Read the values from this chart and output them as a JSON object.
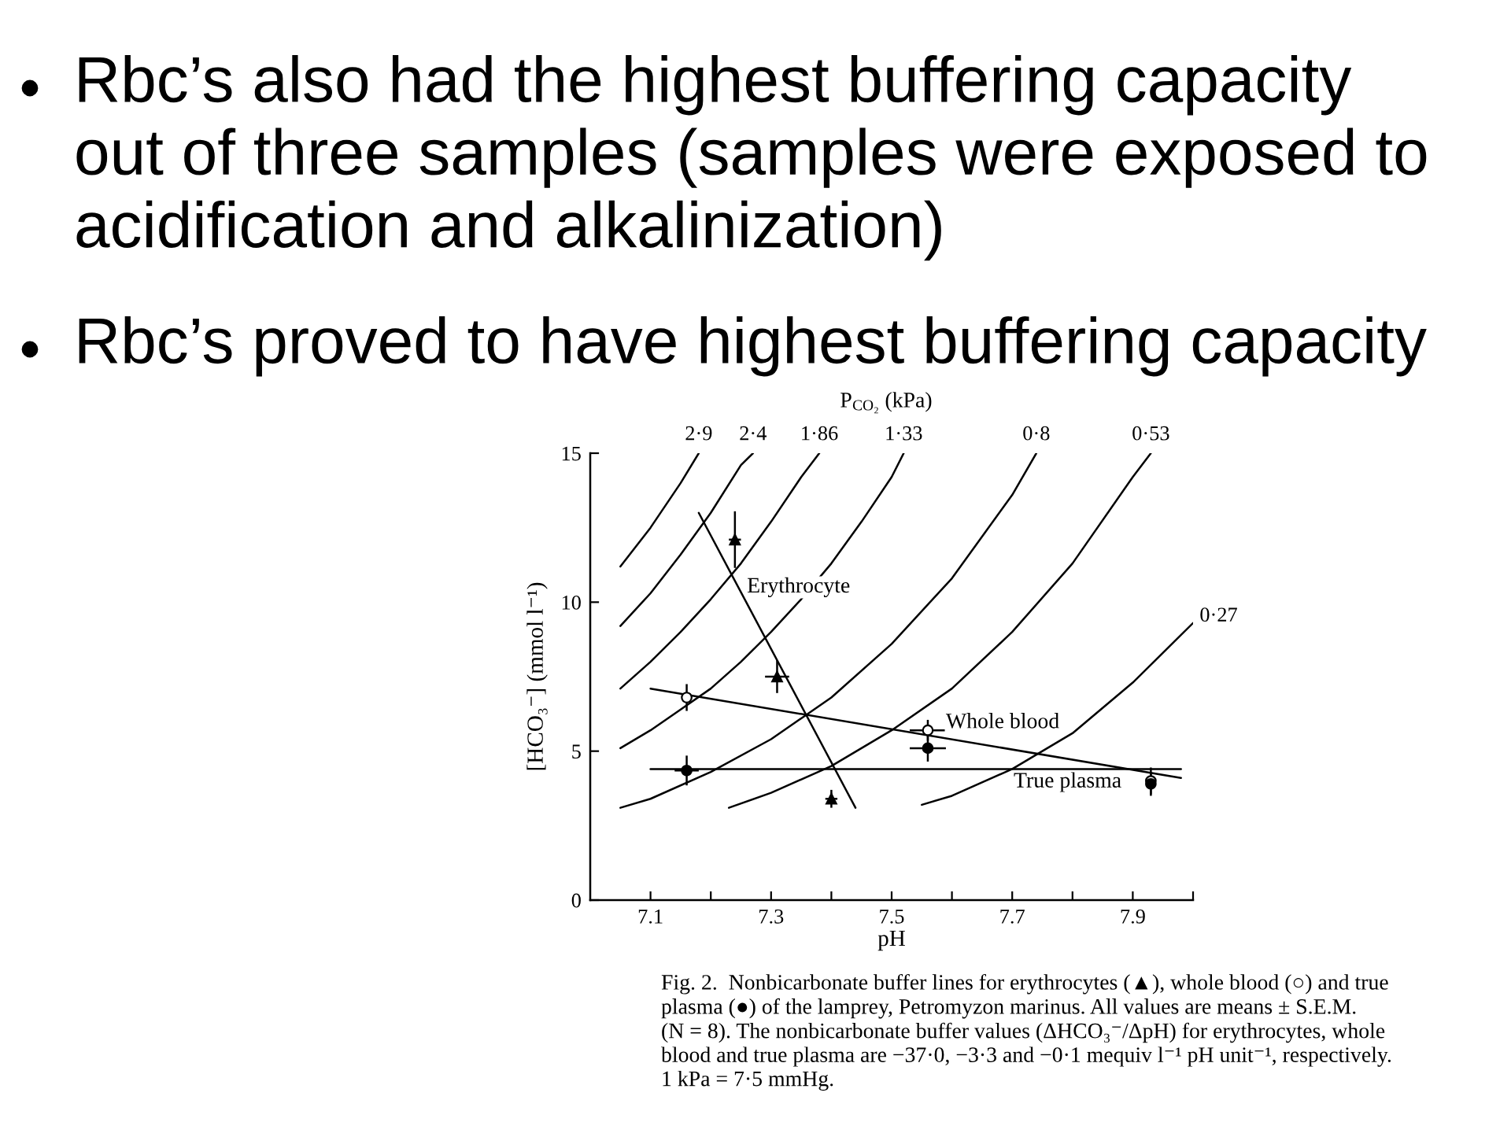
{
  "chart_data": {
    "type": "line",
    "xlabel": "pH",
    "ylabel": "[HCO₃⁻] (mmol l⁻¹)",
    "xlim": [
      7.0,
      8.0
    ],
    "ylim": [
      0,
      15
    ],
    "xticks": [
      7.1,
      {
        "value": 7.2,
        "label": null
      },
      7.3,
      {
        "value": 7.4,
        "label": null
      },
      7.5,
      {
        "value": 7.6,
        "label": null
      },
      7.7,
      {
        "value": 7.8,
        "label": null
      },
      7.9,
      {
        "value": 8.0,
        "label": null
      }
    ],
    "yticks": [
      0,
      5,
      10,
      15
    ],
    "series": [
      {
        "name": "2·9",
        "color": "#000000",
        "x": [
          7.05,
          7.1,
          7.15,
          7.18
        ],
        "values": [
          11.2,
          12.5,
          14.0,
          15.0
        ]
      },
      {
        "name": "2·4",
        "color": "#000000",
        "x": [
          7.05,
          7.1,
          7.15,
          7.2,
          7.25,
          7.27
        ],
        "values": [
          9.2,
          10.3,
          11.6,
          13.0,
          14.6,
          15.0
        ]
      },
      {
        "name": "1·86",
        "color": "#000000",
        "x": [
          7.05,
          7.1,
          7.15,
          7.2,
          7.25,
          7.3,
          7.35,
          7.38
        ],
        "values": [
          7.1,
          8.0,
          9.0,
          10.1,
          11.3,
          12.7,
          14.2,
          15.0
        ]
      },
      {
        "name": "1·33",
        "color": "#000000",
        "x": [
          7.05,
          7.1,
          7.15,
          7.2,
          7.25,
          7.3,
          7.35,
          7.4,
          7.45,
          7.5,
          7.52
        ],
        "values": [
          5.1,
          5.7,
          6.4,
          7.1,
          8.0,
          9.0,
          10.1,
          11.3,
          12.7,
          14.2,
          15.0
        ]
      },
      {
        "name": "0·8",
        "color": "#000000",
        "x": [
          7.05,
          7.1,
          7.2,
          7.3,
          7.4,
          7.5,
          7.6,
          7.7,
          7.74
        ],
        "values": [
          3.1,
          3.4,
          4.3,
          5.4,
          6.8,
          8.6,
          10.8,
          13.6,
          15.0
        ]
      },
      {
        "name": "0·53",
        "color": "#000000",
        "x": [
          7.23,
          7.3,
          7.4,
          7.5,
          7.6,
          7.7,
          7.8,
          7.9,
          7.93
        ],
        "values": [
          3.1,
          3.6,
          4.5,
          5.7,
          7.1,
          9.0,
          11.3,
          14.2,
          15.0
        ]
      },
      {
        "name": "0·27",
        "color": "#000000",
        "x": [
          7.55,
          7.6,
          7.7,
          7.8,
          7.9,
          8.0
        ],
        "values": [
          3.2,
          3.5,
          4.4,
          5.6,
          7.3,
          9.3
        ]
      },
      {
        "color": "#000000",
        "x": [
          7.18,
          7.44
        ],
        "values": [
          13.0,
          3.1
        ]
      },
      {
        "color": "#000000",
        "x": [
          7.1,
          7.98
        ],
        "values": [
          7.1,
          4.1
        ]
      },
      {
        "color": "#000000",
        "x": [
          7.1,
          7.98
        ],
        "values": [
          4.4,
          4.4
        ]
      },
      {
        "type": "scatter",
        "marker": "triangle",
        "color": "#000000",
        "x": [
          7.24,
          7.31,
          7.4
        ],
        "values": [
          12.1,
          7.5,
          3.4
        ],
        "errors": [
          0.95,
          0.55,
          0.3
        ],
        "xerrors": [
          0.01,
          0.02,
          0.01
        ]
      },
      {
        "type": "scatter",
        "marker": "circle",
        "color": "#ffffff",
        "x": [
          7.16,
          7.56,
          7.93
        ],
        "values": [
          6.8,
          5.7,
          4.0
        ],
        "errors": [
          0.45,
          0.35,
          0.45
        ],
        "xerrors": [
          null,
          0.03,
          null
        ]
      },
      {
        "type": "scatter",
        "marker": "circle",
        "color": "#000000",
        "x": [
          7.16,
          7.56,
          7.93
        ],
        "values": [
          4.35,
          5.1,
          3.9
        ],
        "errors": [
          0.5,
          0.45,
          0.4
        ],
        "xerrors": [
          0.02,
          0.03,
          null
        ]
      }
    ],
    "annotations": [
      "Rbc’s also had the highest buffering capacity\nout of three samples (samples were exposed to\nacidification and alkalinization)",
      "Rbc’s proved to have highest buffering capacity",
      "P$_{CO₂}$ (kPa)",
      "Fig. 2.  Nonbicarbonate buffer lines for erythrocytes (▲), whole blood (○) and true\nplasma (●) of the lamprey, Petromyzon marinus. All values are means ± S.E.M.\n(N = 8). The nonbicarbonate buffer values (ΔHCO₃⁻/ΔpH) for erythrocytes, whole\nblood and true plasma are −37·0, −3·3 and −0·1 mequiv l⁻¹ pH unit⁻¹, respectively.\n1 kPa = 7·5 mmHg.",
      "True plasma",
      {
        "text": "Erythrocyte",
        "x": 7.26,
        "y": 10.5
      },
      {
        "text": "Whole blood",
        "x": 7.59,
        "y": 5.95
      }
    ]
  }
}
